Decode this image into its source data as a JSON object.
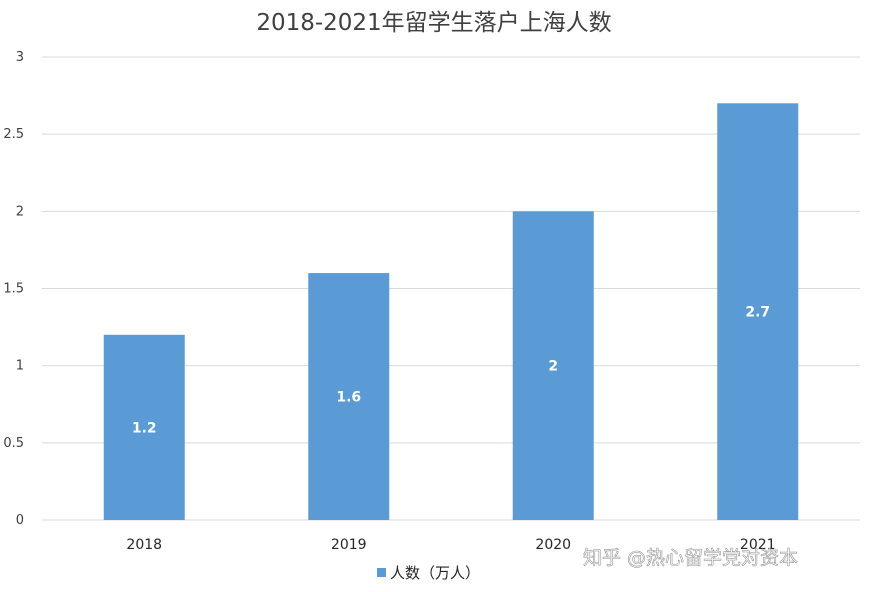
{
  "chart_data": {
    "type": "bar",
    "title": "2018-2021年留学生落户上海人数",
    "categories": [
      "2018",
      "2019",
      "2020",
      "2021"
    ],
    "series": [
      {
        "name": "人数（万人）",
        "values": [
          1.2,
          1.6,
          2,
          2.7
        ],
        "labels": [
          "1.2",
          "1.6",
          "2",
          "2.7"
        ],
        "color": "#5b9bd5"
      }
    ],
    "yticks": [
      "0",
      "0.5",
      "1",
      "1.5",
      "2",
      "2.5",
      "3"
    ],
    "ylim": [
      0,
      3
    ],
    "grid": true,
    "legend": "bottom"
  },
  "watermark": "知乎 @热心留学党对资本"
}
